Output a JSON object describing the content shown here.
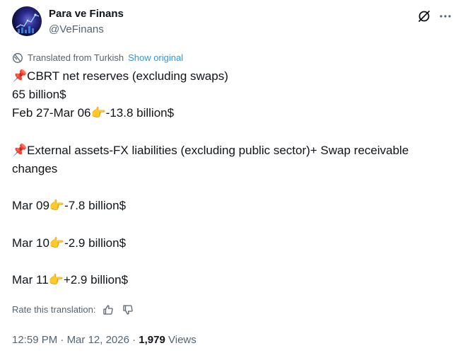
{
  "author": {
    "name": "Para ve Finans",
    "handle": "@VeFinans"
  },
  "icons": {
    "avatar": "avatar-image",
    "grok": "grok-slash-icon",
    "more": "more-horizontal-icon",
    "globe": "globe-icon",
    "thumbs_up": "thumbs-up-icon",
    "thumbs_down": "thumbs-down-icon"
  },
  "translation": {
    "note": "Translated from Turkish",
    "show_original": "Show original"
  },
  "body": {
    "line1_emoji": "📌",
    "line1_text": "CBRT net reserves (excluding swaps)",
    "line2": "65 billion$",
    "line3_pre": "Feb 27-Mar 06",
    "line3_emoji": "👉",
    "line3_post": "-13.8 billion$",
    "line4_emoji": "📌",
    "line4_text": "External assets-FX liabilities (excluding public sector)+ Swap receivable changes",
    "entries": [
      {
        "date": "Mar 09",
        "emoji": "👉",
        "value": "-7.8 billion$"
      },
      {
        "date": "Mar 10",
        "emoji": "👉",
        "value": "-2.9 billion$"
      },
      {
        "date": "Mar 11",
        "emoji": "👉",
        "value": "+2.9 billion$"
      }
    ]
  },
  "rate": {
    "label": "Rate this translation:"
  },
  "meta": {
    "time": "12:59 PM",
    "separator": " · ",
    "date": "Mar 12, 2026",
    "views_count": "1,979",
    "views_label": " Views"
  },
  "colors": {
    "text": "#0f1419",
    "secondary": "#536471",
    "link": "#1d9bf0"
  }
}
